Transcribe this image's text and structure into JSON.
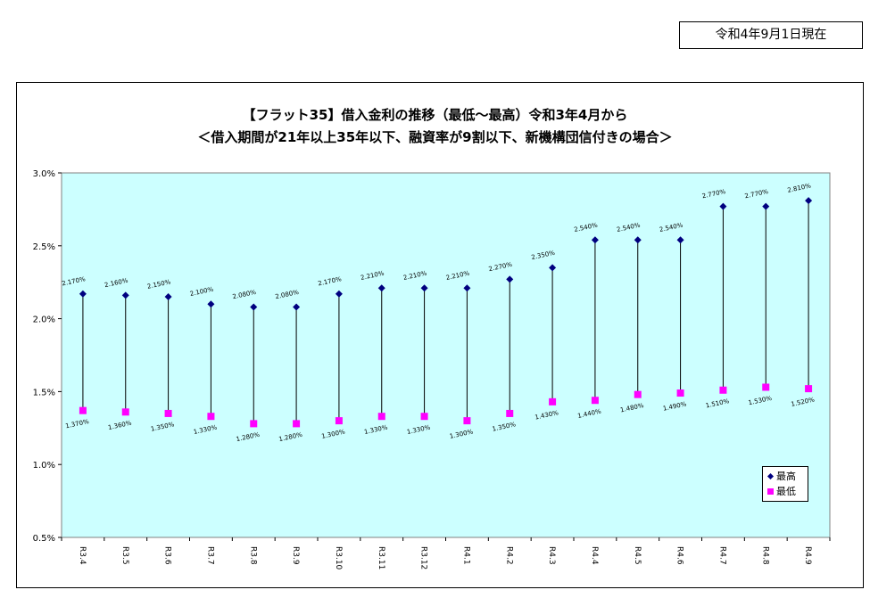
{
  "header": {
    "date_label": "令和4年9月1日現在"
  },
  "chart_data": {
    "type": "scatter",
    "title": "【フラット35】借入金利の推移（最低～最高）令和3年4月から",
    "subtitle": "＜借入期間が21年以上35年以下、融資率が9割以下、新機構団信付きの場合＞",
    "xlabel": "",
    "ylabel": "",
    "categories": [
      "R3.4",
      "R3.5",
      "R3.6",
      "R3.7",
      "R3.8",
      "R3.9",
      "R3.10",
      "R3.11",
      "R3.12",
      "R4.1",
      "R4.2",
      "R4.3",
      "R4.4",
      "R4.5",
      "R4.6",
      "R4.7",
      "R4.8",
      "R4.9"
    ],
    "series": [
      {
        "name": "最高",
        "values": [
          2.17,
          2.16,
          2.15,
          2.1,
          2.08,
          2.08,
          2.17,
          2.21,
          2.21,
          2.21,
          2.27,
          2.35,
          2.54,
          2.54,
          2.54,
          2.77,
          2.77,
          2.81
        ],
        "labels": [
          "2.170%",
          "2.160%",
          "2.150%",
          "2.100%",
          "2.080%",
          "2.080%",
          "2.170%",
          "2.210%",
          "2.210%",
          "2.210%",
          "2.270%",
          "2.350%",
          "2.540%",
          "2.540%",
          "2.540%",
          "2.770%",
          "2.770%",
          "2.810%"
        ],
        "color": "#000080",
        "marker": "diamond"
      },
      {
        "name": "最低",
        "values": [
          1.37,
          1.36,
          1.35,
          1.33,
          1.28,
          1.28,
          1.3,
          1.33,
          1.33,
          1.3,
          1.35,
          1.43,
          1.44,
          1.48,
          1.49,
          1.51,
          1.53,
          1.52
        ],
        "labels": [
          "1.370%",
          "1.360%",
          "1.350%",
          "1.330%",
          "1.280%",
          "1.280%",
          "1.300%",
          "1.330%",
          "1.330%",
          "1.300%",
          "1.350%",
          "1.430%",
          "1.440%",
          "1.480%",
          "1.490%",
          "1.510%",
          "1.530%",
          "1.520%"
        ],
        "color": "#ff00ff",
        "marker": "square"
      }
    ],
    "ylim": [
      0.5,
      3.0
    ],
    "yticks": [
      "0.5%",
      "1.0%",
      "1.5%",
      "2.0%",
      "2.5%",
      "3.0%"
    ],
    "ytick_values": [
      0.5,
      1.0,
      1.5,
      2.0,
      2.5,
      3.0
    ],
    "grid": false,
    "high_low_lines": true,
    "plot_background": "#ccffff",
    "legend_position": "bottom-right"
  }
}
